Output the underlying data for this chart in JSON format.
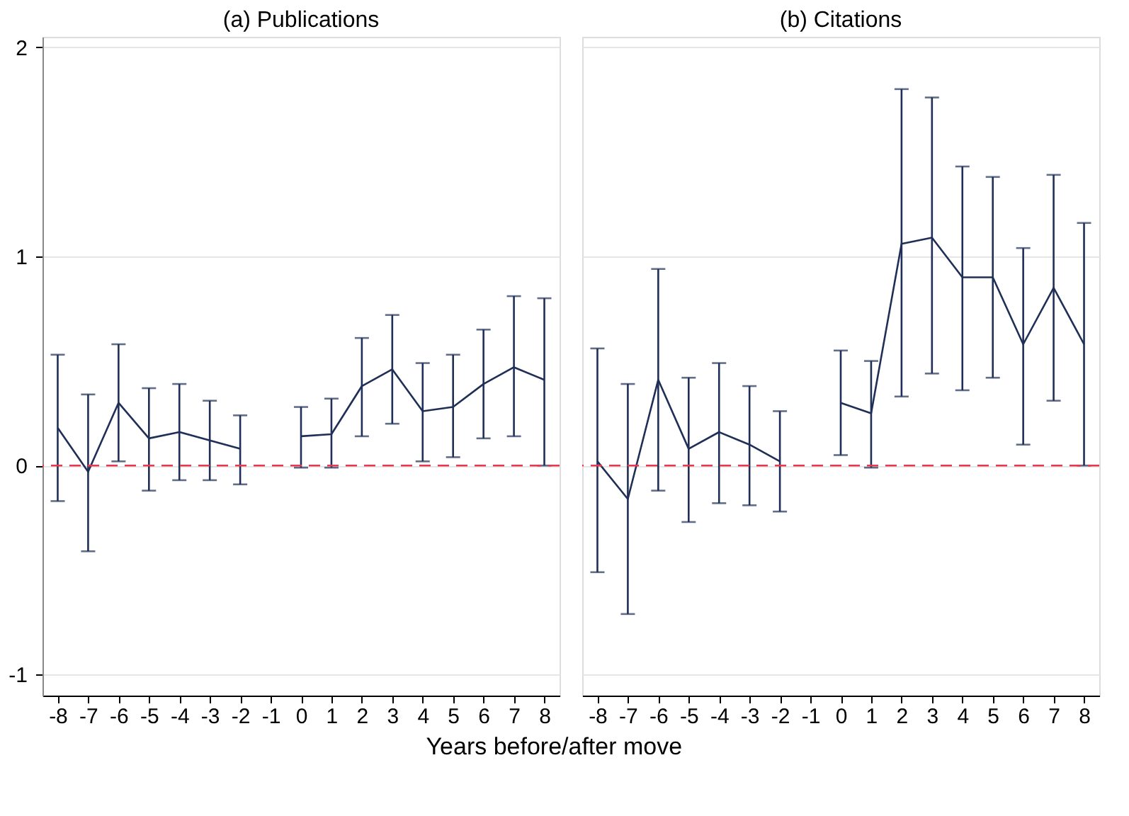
{
  "chart_data": [
    {
      "type": "line",
      "title": "(a) Publications",
      "xlabel": "Years before/after move",
      "x": [
        -8,
        -7,
        -6,
        -5,
        -4,
        -3,
        -2,
        -1,
        0,
        1,
        2,
        3,
        4,
        5,
        6,
        7,
        8
      ],
      "series": [
        {
          "color": "#1f2f57",
          "values": [
            0.18,
            -0.03,
            0.3,
            0.13,
            0.16,
            0.12,
            0.08,
            null,
            0.14,
            0.15,
            0.38,
            0.46,
            0.26,
            0.28,
            0.39,
            0.47,
            0.41
          ],
          "errors": [
            [
              -0.17,
              0.53
            ],
            [
              -0.41,
              0.34
            ],
            [
              0.02,
              0.58
            ],
            [
              -0.12,
              0.37
            ],
            [
              -0.07,
              0.39
            ],
            [
              -0.07,
              0.31
            ],
            [
              -0.09,
              0.24
            ],
            null,
            [
              -0.01,
              0.28
            ],
            [
              -0.01,
              0.32
            ],
            [
              0.14,
              0.61
            ],
            [
              0.2,
              0.72
            ],
            [
              0.02,
              0.49
            ],
            [
              0.04,
              0.53
            ],
            [
              0.13,
              0.65
            ],
            [
              0.14,
              0.81
            ],
            [
              0.0,
              0.8
            ]
          ]
        }
      ],
      "xlim": [
        -8.5,
        8.5
      ],
      "xticks": [
        -8,
        -7,
        -6,
        -5,
        -4,
        -3,
        -2,
        -1,
        0,
        1,
        2,
        3,
        4,
        5,
        6,
        7,
        8
      ],
      "ylim": [
        -1.1,
        2.05
      ],
      "yticks": [
        -1,
        0,
        1,
        2
      ],
      "grid": "y",
      "marker": "none",
      "line_style": "solid",
      "ref_lines": [
        {
          "axis": "y",
          "value": 0,
          "color": "#e8384f",
          "line_style": "dashed"
        }
      ]
    },
    {
      "type": "line",
      "title": "(b) Citations",
      "x": [
        -8,
        -7,
        -6,
        -5,
        -4,
        -3,
        -2,
        -1,
        0,
        1,
        2,
        3,
        4,
        5,
        6,
        7,
        8
      ],
      "series": [
        {
          "color": "#1f2f57",
          "values": [
            0.02,
            -0.16,
            0.41,
            0.08,
            0.16,
            0.1,
            0.02,
            null,
            0.3,
            0.25,
            1.06,
            1.09,
            0.9,
            0.9,
            0.58,
            0.85,
            0.58
          ],
          "errors": [
            [
              -0.51,
              0.56
            ],
            [
              -0.71,
              0.39
            ],
            [
              -0.12,
              0.94
            ],
            [
              -0.27,
              0.42
            ],
            [
              -0.18,
              0.49
            ],
            [
              -0.19,
              0.38
            ],
            [
              -0.22,
              0.26
            ],
            null,
            [
              0.05,
              0.55
            ],
            [
              -0.01,
              0.5
            ],
            [
              0.33,
              1.8
            ],
            [
              0.44,
              1.76
            ],
            [
              0.36,
              1.43
            ],
            [
              0.42,
              1.38
            ],
            [
              0.1,
              1.04
            ],
            [
              0.31,
              1.39
            ],
            [
              0.0,
              1.16
            ]
          ]
        }
      ],
      "xlim": [
        -8.5,
        8.5
      ],
      "xticks": [
        -8,
        -7,
        -6,
        -5,
        -4,
        -3,
        -2,
        -1,
        0,
        1,
        2,
        3,
        4,
        5,
        6,
        7,
        8
      ],
      "ylim": [
        -1.1,
        2.05
      ],
      "yticks": [
        -1,
        0,
        1,
        2
      ],
      "grid": "y",
      "marker": "none",
      "line_style": "solid",
      "tick_labels": "x",
      "ref_lines": [
        {
          "axis": "y",
          "value": 0,
          "color": "#e8384f",
          "line_style": "dashed"
        }
      ]
    }
  ]
}
